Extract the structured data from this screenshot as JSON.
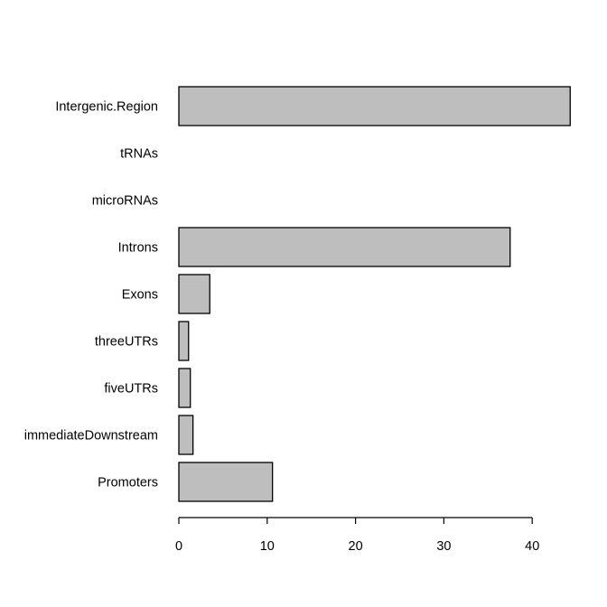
{
  "chart_data": {
    "type": "bar",
    "orientation": "horizontal",
    "title": "",
    "xlabel": "",
    "ylabel": "",
    "categories": [
      "Promoters",
      "immediateDownstream",
      "fiveUTRs",
      "threeUTRs",
      "Exons",
      "Introns",
      "microRNAs",
      "tRNAs",
      "Intergenic.Region"
    ],
    "values": [
      10.6,
      1.6,
      1.3,
      1.1,
      3.5,
      37.5,
      0,
      0,
      44.3
    ],
    "xlim": [
      0,
      44.3
    ],
    "xticks": [
      0,
      10,
      20,
      30,
      40
    ],
    "bar_color": "#bebebe",
    "bar_border_color": "#000000",
    "grid": false,
    "legend": "none"
  }
}
